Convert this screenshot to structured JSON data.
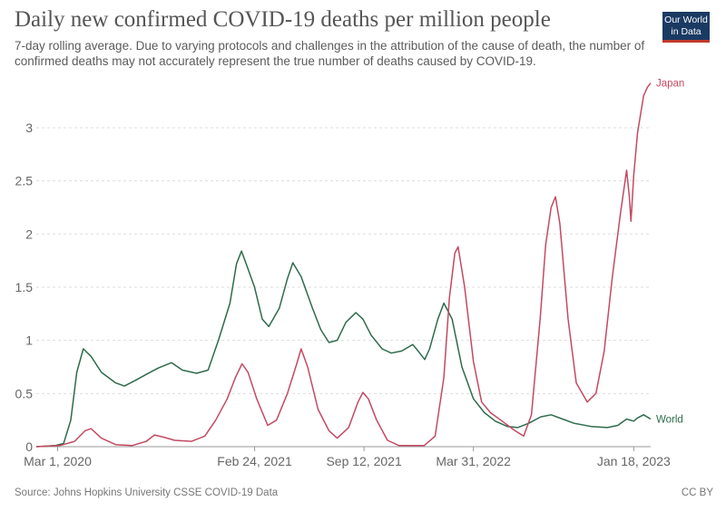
{
  "title": "Daily new confirmed COVID-19 deaths per million people",
  "subtitle": "7-day rolling average. Due to varying protocols and challenges in the attribution of the cause of death, the number of confirmed deaths may not accurately represent the true number of deaths caused by COVID-19.",
  "logo": {
    "line1": "Our World",
    "line2": "in Data",
    "color": "#1a3a63",
    "accent": "#c0392b"
  },
  "source": "Source: Johns Hopkins University CSSE COVID-19 Data",
  "license": "CC BY",
  "chart_data": {
    "type": "line",
    "title": "Daily new confirmed COVID-19 deaths per million people",
    "ylim": [
      0,
      3.4
    ],
    "y_ticks": [
      "0",
      "0.5",
      "1",
      "1.5",
      "2",
      "2.5",
      "3"
    ],
    "y_tick_values": [
      0,
      0.5,
      1,
      1.5,
      2,
      2.5,
      3
    ],
    "x_range": [
      "2020-01-22",
      "2023-02-18"
    ],
    "x_ticks": [
      {
        "label": "Mar 1, 2020",
        "date": "2020-03-01"
      },
      {
        "label": "Feb 24, 2021",
        "date": "2021-02-24"
      },
      {
        "label": "Sep 12, 2021",
        "date": "2021-09-12"
      },
      {
        "label": "Mar 31, 2022",
        "date": "2022-03-31"
      },
      {
        "label": "Jan 18, 2023",
        "date": "2023-01-18"
      }
    ],
    "grid": "horizontal-dashed",
    "legend": "inline-right",
    "series": [
      {
        "name": "World",
        "color": "#2e6b4b",
        "points": [
          [
            "2020-01-22",
            0
          ],
          [
            "2020-02-25",
            0.01
          ],
          [
            "2020-03-12",
            0.03
          ],
          [
            "2020-03-25",
            0.25
          ],
          [
            "2020-04-05",
            0.7
          ],
          [
            "2020-04-17",
            0.92
          ],
          [
            "2020-05-01",
            0.85
          ],
          [
            "2020-05-20",
            0.7
          ],
          [
            "2020-06-15",
            0.6
          ],
          [
            "2020-07-01",
            0.57
          ],
          [
            "2020-07-20",
            0.62
          ],
          [
            "2020-08-10",
            0.68
          ],
          [
            "2020-09-01",
            0.74
          ],
          [
            "2020-09-25",
            0.79
          ],
          [
            "2020-10-15",
            0.72
          ],
          [
            "2020-11-10",
            0.69
          ],
          [
            "2020-12-01",
            0.72
          ],
          [
            "2020-12-20",
            1.0
          ],
          [
            "2021-01-10",
            1.35
          ],
          [
            "2021-01-22",
            1.72
          ],
          [
            "2021-01-31",
            1.84
          ],
          [
            "2021-02-10",
            1.7
          ],
          [
            "2021-02-24",
            1.5
          ],
          [
            "2021-03-10",
            1.2
          ],
          [
            "2021-03-22",
            1.13
          ],
          [
            "2021-04-10",
            1.3
          ],
          [
            "2021-04-25",
            1.58
          ],
          [
            "2021-05-05",
            1.73
          ],
          [
            "2021-05-20",
            1.6
          ],
          [
            "2021-06-10",
            1.3
          ],
          [
            "2021-06-25",
            1.1
          ],
          [
            "2021-07-10",
            0.98
          ],
          [
            "2021-07-25",
            1.0
          ],
          [
            "2021-08-10",
            1.17
          ],
          [
            "2021-08-28",
            1.26
          ],
          [
            "2021-09-10",
            1.2
          ],
          [
            "2021-09-25",
            1.05
          ],
          [
            "2021-10-15",
            0.92
          ],
          [
            "2021-11-01",
            0.88
          ],
          [
            "2021-11-20",
            0.9
          ],
          [
            "2021-12-10",
            0.96
          ],
          [
            "2021-12-20",
            0.9
          ],
          [
            "2022-01-01",
            0.82
          ],
          [
            "2022-01-10",
            0.92
          ],
          [
            "2022-01-25",
            1.2
          ],
          [
            "2022-02-05",
            1.35
          ],
          [
            "2022-02-20",
            1.2
          ],
          [
            "2022-03-10",
            0.75
          ],
          [
            "2022-03-31",
            0.45
          ],
          [
            "2022-04-20",
            0.32
          ],
          [
            "2022-05-10",
            0.24
          ],
          [
            "2022-06-01",
            0.19
          ],
          [
            "2022-06-20",
            0.18
          ],
          [
            "2022-07-10",
            0.22
          ],
          [
            "2022-08-01",
            0.28
          ],
          [
            "2022-08-20",
            0.3
          ],
          [
            "2022-09-10",
            0.26
          ],
          [
            "2022-10-01",
            0.22
          ],
          [
            "2022-11-01",
            0.19
          ],
          [
            "2022-12-01",
            0.18
          ],
          [
            "2022-12-20",
            0.2
          ],
          [
            "2023-01-05",
            0.26
          ],
          [
            "2023-01-18",
            0.24
          ],
          [
            "2023-01-25",
            0.27
          ],
          [
            "2023-02-05",
            0.3
          ],
          [
            "2023-02-18",
            0.26
          ]
        ]
      },
      {
        "name": "Japan",
        "color": "#c34a62",
        "points": [
          [
            "2020-01-22",
            0
          ],
          [
            "2020-03-05",
            0.01
          ],
          [
            "2020-04-01",
            0.05
          ],
          [
            "2020-04-20",
            0.15
          ],
          [
            "2020-05-01",
            0.17
          ],
          [
            "2020-05-20",
            0.08
          ],
          [
            "2020-06-15",
            0.02
          ],
          [
            "2020-07-15",
            0.01
          ],
          [
            "2020-08-10",
            0.05
          ],
          [
            "2020-08-25",
            0.11
          ],
          [
            "2020-09-10",
            0.09
          ],
          [
            "2020-10-01",
            0.06
          ],
          [
            "2020-11-01",
            0.05
          ],
          [
            "2020-11-25",
            0.1
          ],
          [
            "2020-12-15",
            0.25
          ],
          [
            "2021-01-05",
            0.45
          ],
          [
            "2021-01-20",
            0.65
          ],
          [
            "2021-02-01",
            0.78
          ],
          [
            "2021-02-12",
            0.7
          ],
          [
            "2021-02-28",
            0.45
          ],
          [
            "2021-03-20",
            0.2
          ],
          [
            "2021-04-05",
            0.25
          ],
          [
            "2021-04-25",
            0.5
          ],
          [
            "2021-05-12",
            0.78
          ],
          [
            "2021-05-20",
            0.92
          ],
          [
            "2021-06-01",
            0.75
          ],
          [
            "2021-06-20",
            0.35
          ],
          [
            "2021-07-10",
            0.15
          ],
          [
            "2021-07-25",
            0.08
          ],
          [
            "2021-08-15",
            0.18
          ],
          [
            "2021-09-01",
            0.42
          ],
          [
            "2021-09-10",
            0.51
          ],
          [
            "2021-09-20",
            0.45
          ],
          [
            "2021-10-05",
            0.25
          ],
          [
            "2021-10-25",
            0.06
          ],
          [
            "2021-11-15",
            0.01
          ],
          [
            "2021-12-31",
            0.01
          ],
          [
            "2022-01-20",
            0.1
          ],
          [
            "2022-02-05",
            0.65
          ],
          [
            "2022-02-15",
            1.4
          ],
          [
            "2022-02-25",
            1.82
          ],
          [
            "2022-03-03",
            1.88
          ],
          [
            "2022-03-15",
            1.5
          ],
          [
            "2022-03-31",
            0.8
          ],
          [
            "2022-04-15",
            0.42
          ],
          [
            "2022-05-01",
            0.32
          ],
          [
            "2022-05-20",
            0.25
          ],
          [
            "2022-06-15",
            0.15
          ],
          [
            "2022-07-01",
            0.1
          ],
          [
            "2022-07-15",
            0.3
          ],
          [
            "2022-07-31",
            1.2
          ],
          [
            "2022-08-10",
            1.9
          ],
          [
            "2022-08-20",
            2.25
          ],
          [
            "2022-08-28",
            2.35
          ],
          [
            "2022-09-05",
            2.1
          ],
          [
            "2022-09-20",
            1.2
          ],
          [
            "2022-10-05",
            0.6
          ],
          [
            "2022-10-25",
            0.42
          ],
          [
            "2022-11-10",
            0.5
          ],
          [
            "2022-11-25",
            0.9
          ],
          [
            "2022-12-10",
            1.6
          ],
          [
            "2022-12-25",
            2.2
          ],
          [
            "2023-01-05",
            2.6
          ],
          [
            "2023-01-10",
            2.35
          ],
          [
            "2023-01-13",
            2.12
          ],
          [
            "2023-01-18",
            2.55
          ],
          [
            "2023-01-25",
            2.95
          ],
          [
            "2023-02-05",
            3.3
          ],
          [
            "2023-02-12",
            3.38
          ],
          [
            "2023-02-18",
            3.42
          ]
        ]
      }
    ]
  }
}
